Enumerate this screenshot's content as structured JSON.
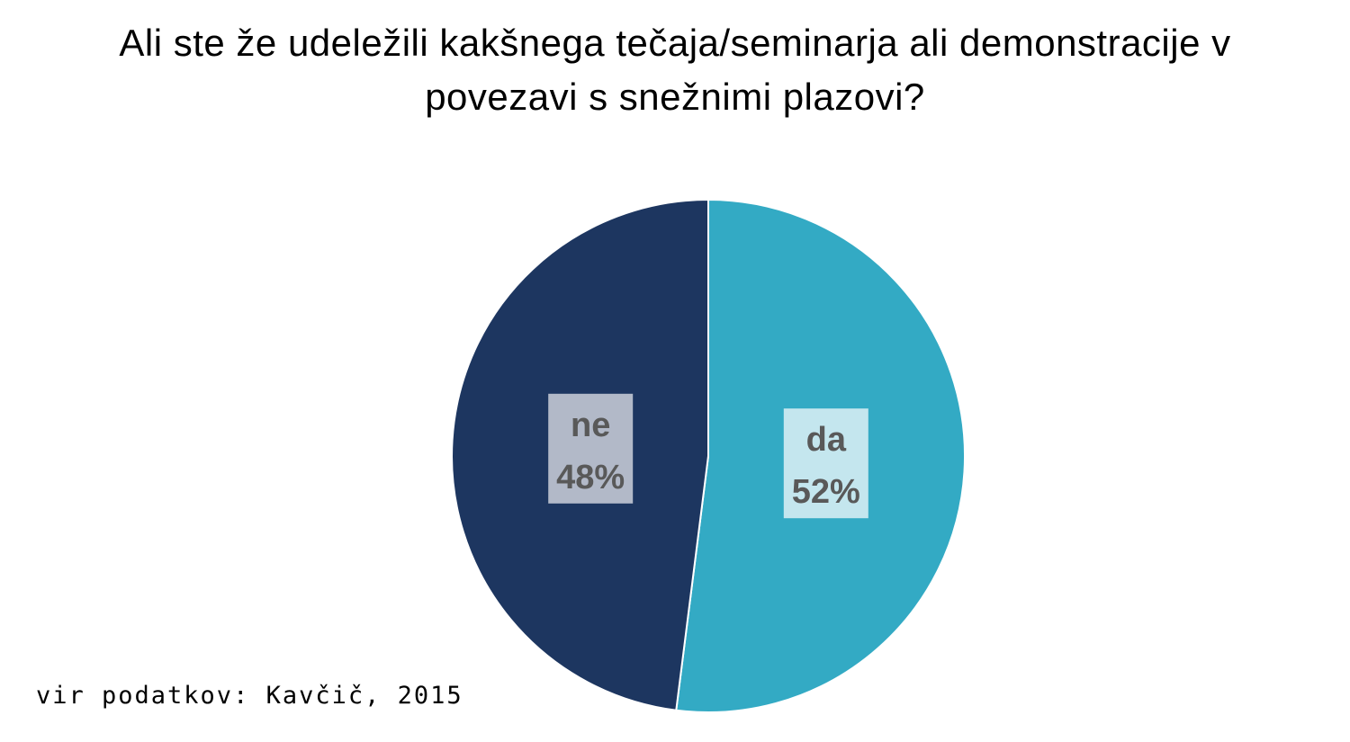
{
  "chart_data": {
    "type": "pie",
    "title_lines": [
      "Ali ste že udeležili kakšnega tečaja/seminarja ali demonstracije v",
      "povezavi s snežnimi plazovi?"
    ],
    "slices": [
      {
        "label": "da",
        "value": 52,
        "value_label": "52%",
        "color": "#33AAC4",
        "label_bg": "#C4E6EE"
      },
      {
        "label": "ne",
        "value": 48,
        "value_label": "48%",
        "color": "#1D3660",
        "label_bg": "#B2B9C8"
      }
    ],
    "start_angle_deg": 0,
    "direction": "clockwise",
    "legend": "none",
    "source": "vir podatkov: Kavčič, 2015"
  }
}
